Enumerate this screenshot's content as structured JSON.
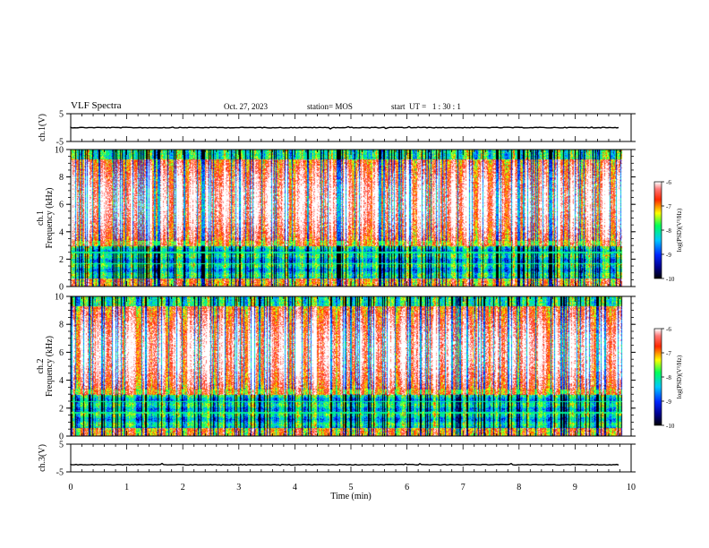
{
  "header": {
    "title": "VLF Spectra",
    "date": "Oct. 27, 2023",
    "station": "station= MOS",
    "start_ut": "start  UT =   1 : 30 : 1"
  },
  "chart_data": [
    {
      "type": "line",
      "panel": "ch1-waveform",
      "ylabel": "ch.1(V)",
      "ylim": [
        -5,
        5
      ],
      "yticks": [
        "5",
        "-5"
      ],
      "x_range_min": [
        0,
        9.8
      ],
      "y_level": 0,
      "series_color": "#000000"
    },
    {
      "type": "heatmap",
      "panel": "ch1-spectrogram",
      "ylabel_lines": [
        "ch.1",
        "Frequency  (kHz)"
      ],
      "ylim": [
        0,
        10
      ],
      "yticks": [
        "0",
        "2",
        "4",
        "6",
        "8",
        "10"
      ],
      "colorbar": {
        "label": "log(PSD)(V²/Hz)",
        "ticks": [
          "-6",
          "-7",
          "-8",
          "-9",
          "-10"
        ],
        "range": [
          -10,
          -6
        ],
        "colormap": [
          "#000000",
          "#0000ff",
          "#00c8ff",
          "#00ff64",
          "#ffff00",
          "#ff0000",
          "#ffffff"
        ]
      }
    },
    {
      "type": "heatmap",
      "panel": "ch2-spectrogram",
      "ylabel_lines": [
        "ch.2",
        "Frequency  (kHz)"
      ],
      "ylim": [
        0,
        10
      ],
      "yticks": [
        "0",
        "2",
        "4",
        "6",
        "8",
        "10"
      ],
      "colorbar": {
        "label": "log(PSD)(V²/Hz)",
        "ticks": [
          "-6",
          "-7",
          "-8",
          "-9",
          "-10"
        ],
        "range": [
          -10,
          -6
        ],
        "colormap": [
          "#000000",
          "#0000ff",
          "#00c8ff",
          "#00ff64",
          "#ffff00",
          "#ff0000",
          "#ffffff"
        ]
      }
    },
    {
      "type": "line",
      "panel": "ch3-waveform",
      "ylabel": "ch.3(V)",
      "ylim": [
        -5,
        5
      ],
      "yticks": [
        "5",
        "-5"
      ],
      "x_range_min": [
        0,
        9.8
      ],
      "y_level": -2.4,
      "series_color": "#000000"
    }
  ],
  "x_axis": {
    "label": "Time  (min)",
    "xlim": [
      0,
      10
    ],
    "ticks": [
      "0",
      "1",
      "2",
      "3",
      "4",
      "5",
      "6",
      "7",
      "8",
      "9",
      "10"
    ]
  }
}
